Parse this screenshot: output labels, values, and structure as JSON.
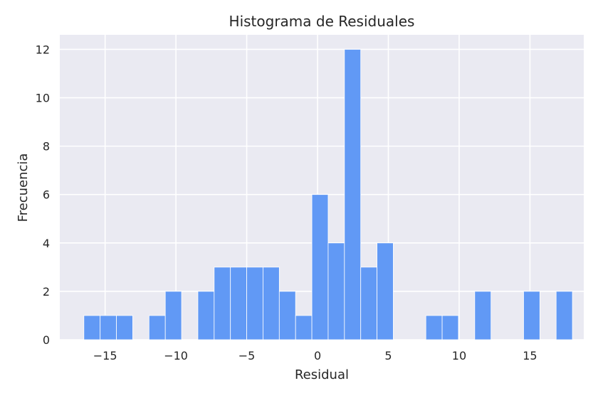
{
  "chart_data": {
    "type": "bar",
    "title": "Histograma de Residuales",
    "xlabel": "Residual",
    "ylabel": "Frecuencia",
    "bin_width": 1.15,
    "bins": [
      {
        "x0": -16.5,
        "count": 1
      },
      {
        "x0": -15.35,
        "count": 1
      },
      {
        "x0": -14.2,
        "count": 1
      },
      {
        "x0": -13.05,
        "count": 0
      },
      {
        "x0": -11.9,
        "count": 1
      },
      {
        "x0": -10.75,
        "count": 2
      },
      {
        "x0": -9.6,
        "count": 0
      },
      {
        "x0": -8.45,
        "count": 2
      },
      {
        "x0": -7.3,
        "count": 3
      },
      {
        "x0": -6.15,
        "count": 3
      },
      {
        "x0": -5.0,
        "count": 3
      },
      {
        "x0": -3.85,
        "count": 3
      },
      {
        "x0": -2.7,
        "count": 2
      },
      {
        "x0": -1.55,
        "count": 1
      },
      {
        "x0": -0.4,
        "count": 6
      },
      {
        "x0": 0.75,
        "count": 4
      },
      {
        "x0": 1.9,
        "count": 12
      },
      {
        "x0": 3.05,
        "count": 3
      },
      {
        "x0": 4.2,
        "count": 4
      },
      {
        "x0": 5.35,
        "count": 0
      },
      {
        "x0": 6.5,
        "count": 0
      },
      {
        "x0": 7.65,
        "count": 1
      },
      {
        "x0": 8.8,
        "count": 1
      },
      {
        "x0": 9.95,
        "count": 0
      },
      {
        "x0": 11.1,
        "count": 2
      },
      {
        "x0": 12.25,
        "count": 0
      },
      {
        "x0": 13.4,
        "count": 0
      },
      {
        "x0": 14.55,
        "count": 2
      },
      {
        "x0": 15.7,
        "count": 0
      },
      {
        "x0": 16.85,
        "count": 2
      }
    ],
    "xlim": [
      -18.2,
      18.8
    ],
    "ylim": [
      0,
      12.6
    ],
    "x_ticks": [
      -15,
      -10,
      -5,
      0,
      5,
      10,
      15
    ],
    "x_tick_labels": [
      "−15",
      "−10",
      "−5",
      "0",
      "5",
      "10",
      "15"
    ],
    "y_ticks": [
      0,
      2,
      4,
      6,
      8,
      10,
      12
    ],
    "y_tick_labels": [
      "0",
      "2",
      "4",
      "6",
      "8",
      "10",
      "12"
    ],
    "grid": true,
    "colors": {
      "bar": "#6199f5",
      "bar_edge": "#ffffff",
      "plot_background": "#eaeaf2",
      "grid": "#ffffff",
      "text": "#262626"
    }
  }
}
